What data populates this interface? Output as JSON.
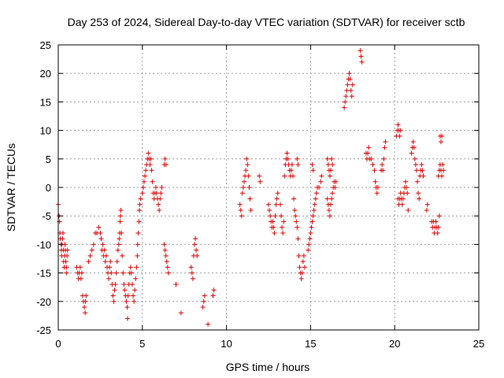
{
  "chart_data": {
    "type": "scatter",
    "title": "Day 253 of 2024, Sidereal Day-to-day VTEC variation (SDTVAR) for receiver sctb",
    "xlabel": "GPS time / hours",
    "ylabel": "SDTVAR / TECUs",
    "xlim": [
      0,
      25
    ],
    "ylim": [
      -25,
      25
    ],
    "xticks": [
      0,
      5,
      10,
      15,
      20,
      25
    ],
    "yticks": [
      -25,
      -20,
      -15,
      -10,
      -5,
      0,
      5,
      10,
      15,
      20,
      25
    ],
    "grid": true,
    "marker": "plus",
    "color": "#e00000",
    "series": [
      {
        "name": "sctb",
        "points": [
          [
            0.0,
            -3
          ],
          [
            0.05,
            -5
          ],
          [
            0.08,
            -6
          ],
          [
            0.1,
            -8
          ],
          [
            0.12,
            -9
          ],
          [
            0.15,
            -10
          ],
          [
            0.18,
            -11
          ],
          [
            0.2,
            -12
          ],
          [
            0.22,
            -10
          ],
          [
            0.25,
            -9
          ],
          [
            0.28,
            -8
          ],
          [
            0.3,
            -11
          ],
          [
            0.32,
            -13
          ],
          [
            0.35,
            -14
          ],
          [
            0.38,
            -12
          ],
          [
            0.4,
            -10
          ],
          [
            0.42,
            -11
          ],
          [
            0.45,
            -13
          ],
          [
            0.48,
            -15
          ],
          [
            0.5,
            -14
          ],
          [
            0.52,
            -12
          ],
          [
            0.55,
            -11
          ],
          [
            1.1,
            -14
          ],
          [
            1.15,
            -15
          ],
          [
            1.2,
            -16
          ],
          [
            1.25,
            -15
          ],
          [
            1.3,
            -14
          ],
          [
            1.35,
            -16
          ],
          [
            1.4,
            -15
          ],
          [
            1.45,
            -19
          ],
          [
            1.5,
            -20
          ],
          [
            1.55,
            -21
          ],
          [
            1.6,
            -22
          ],
          [
            1.62,
            -20
          ],
          [
            1.65,
            -19
          ],
          [
            1.8,
            -13
          ],
          [
            1.9,
            -12
          ],
          [
            2.0,
            -11
          ],
          [
            2.1,
            -10
          ],
          [
            2.2,
            -8
          ],
          [
            2.3,
            -8
          ],
          [
            2.4,
            -7
          ],
          [
            2.5,
            -8
          ],
          [
            2.55,
            -9
          ],
          [
            2.6,
            -11
          ],
          [
            2.65,
            -10
          ],
          [
            2.7,
            -12
          ],
          [
            2.75,
            -11
          ],
          [
            2.8,
            -13
          ],
          [
            2.85,
            -12
          ],
          [
            2.9,
            -14
          ],
          [
            2.95,
            -15
          ],
          [
            3.0,
            -16
          ],
          [
            3.05,
            -14
          ],
          [
            3.1,
            -13
          ],
          [
            3.15,
            -15
          ],
          [
            3.2,
            -17
          ],
          [
            3.25,
            -19
          ],
          [
            3.3,
            -20
          ],
          [
            3.35,
            -18
          ],
          [
            3.4,
            -17
          ],
          [
            3.45,
            -15
          ],
          [
            3.5,
            -13
          ],
          [
            3.55,
            -11
          ],
          [
            3.6,
            -10
          ],
          [
            3.62,
            -9
          ],
          [
            3.65,
            -8
          ],
          [
            3.68,
            -6
          ],
          [
            3.7,
            -5
          ],
          [
            3.72,
            -4
          ],
          [
            3.75,
            -8
          ],
          [
            3.8,
            -12
          ],
          [
            3.85,
            -15
          ],
          [
            3.9,
            -17
          ],
          [
            3.95,
            -18
          ],
          [
            4.0,
            -19
          ],
          [
            4.05,
            -20
          ],
          [
            4.1,
            -21
          ],
          [
            4.12,
            -23
          ],
          [
            4.15,
            -19
          ],
          [
            4.2,
            -17
          ],
          [
            4.25,
            -15
          ],
          [
            4.3,
            -14
          ],
          [
            4.35,
            -15
          ],
          [
            4.4,
            -17
          ],
          [
            4.45,
            -19
          ],
          [
            4.5,
            -20
          ],
          [
            4.55,
            -18
          ],
          [
            4.6,
            -16
          ],
          [
            4.65,
            -14
          ],
          [
            4.7,
            -12
          ],
          [
            4.72,
            -10
          ],
          [
            4.75,
            -8
          ],
          [
            4.8,
            -6
          ],
          [
            4.82,
            -4
          ],
          [
            4.85,
            -3
          ],
          [
            4.9,
            -2
          ],
          [
            5.0,
            -1
          ],
          [
            5.05,
            0
          ],
          [
            5.1,
            1
          ],
          [
            5.15,
            2
          ],
          [
            5.2,
            3
          ],
          [
            5.25,
            4
          ],
          [
            5.3,
            5
          ],
          [
            5.35,
            6
          ],
          [
            5.4,
            5
          ],
          [
            5.45,
            4
          ],
          [
            5.5,
            5
          ],
          [
            5.55,
            3
          ],
          [
            5.6,
            1
          ],
          [
            5.65,
            -1
          ],
          [
            5.7,
            -2
          ],
          [
            5.75,
            -1
          ],
          [
            5.8,
            0
          ],
          [
            5.85,
            -1
          ],
          [
            5.9,
            -2
          ],
          [
            5.95,
            -3
          ],
          [
            6.0,
            -4
          ],
          [
            6.05,
            -2
          ],
          [
            6.1,
            -1
          ],
          [
            6.15,
            0
          ],
          [
            6.3,
            4
          ],
          [
            6.35,
            5
          ],
          [
            6.4,
            4
          ],
          [
            6.3,
            -10
          ],
          [
            6.35,
            -11
          ],
          [
            6.4,
            -12
          ],
          [
            6.45,
            -13
          ],
          [
            6.5,
            -14
          ],
          [
            6.55,
            -15
          ],
          [
            7.0,
            -17
          ],
          [
            7.3,
            -22
          ],
          [
            7.9,
            -14
          ],
          [
            7.95,
            -15
          ],
          [
            8.0,
            -16
          ],
          [
            8.05,
            -12
          ],
          [
            8.1,
            -10
          ],
          [
            8.15,
            -9
          ],
          [
            8.2,
            -11
          ],
          [
            8.25,
            -12
          ],
          [
            8.6,
            -21
          ],
          [
            8.65,
            -20
          ],
          [
            8.7,
            -19
          ],
          [
            8.9,
            -24
          ],
          [
            9.2,
            -19
          ],
          [
            9.25,
            -18
          ],
          [
            10.8,
            -3
          ],
          [
            10.85,
            -4
          ],
          [
            10.9,
            -5
          ],
          [
            10.95,
            -1
          ],
          [
            11.0,
            0
          ],
          [
            11.05,
            1
          ],
          [
            11.1,
            2
          ],
          [
            11.15,
            3
          ],
          [
            11.2,
            5
          ],
          [
            11.25,
            4
          ],
          [
            11.3,
            2
          ],
          [
            11.35,
            0
          ],
          [
            11.4,
            -2
          ],
          [
            11.45,
            -4
          ],
          [
            11.95,
            2
          ],
          [
            12.0,
            1
          ],
          [
            12.5,
            -3
          ],
          [
            12.55,
            -4
          ],
          [
            12.6,
            -5
          ],
          [
            12.65,
            -6
          ],
          [
            12.7,
            -7
          ],
          [
            12.75,
            -6
          ],
          [
            12.8,
            -7
          ],
          [
            12.85,
            -8
          ],
          [
            12.9,
            -5
          ],
          [
            12.95,
            -3
          ],
          [
            13.0,
            -2
          ],
          [
            13.05,
            -1
          ],
          [
            13.2,
            -3
          ],
          [
            13.25,
            -5
          ],
          [
            13.3,
            -7
          ],
          [
            13.35,
            -8
          ],
          [
            13.4,
            -6
          ],
          [
            13.45,
            2
          ],
          [
            13.5,
            4
          ],
          [
            13.55,
            5
          ],
          [
            13.6,
            6
          ],
          [
            13.65,
            5
          ],
          [
            13.7,
            4
          ],
          [
            13.75,
            3
          ],
          [
            13.8,
            2
          ],
          [
            13.85,
            3
          ],
          [
            13.9,
            4
          ],
          [
            13.95,
            2
          ],
          [
            14.0,
            -2
          ],
          [
            14.05,
            -4
          ],
          [
            14.1,
            -5
          ],
          [
            14.15,
            -6
          ],
          [
            14.2,
            -7
          ],
          [
            14.25,
            -9
          ],
          [
            14.3,
            -12
          ],
          [
            14.35,
            -14
          ],
          [
            14.4,
            -15
          ],
          [
            14.45,
            -16
          ],
          [
            14.5,
            -15
          ],
          [
            14.55,
            -13
          ],
          [
            14.6,
            -12
          ],
          [
            14.65,
            -14
          ],
          [
            14.2,
            5
          ],
          [
            14.25,
            4
          ],
          [
            14.85,
            -11
          ],
          [
            14.9,
            -10
          ],
          [
            14.95,
            -9
          ],
          [
            15.0,
            -8
          ],
          [
            15.05,
            -7
          ],
          [
            15.1,
            -6
          ],
          [
            15.15,
            -5
          ],
          [
            15.2,
            -4
          ],
          [
            15.25,
            -3
          ],
          [
            15.3,
            -2
          ],
          [
            15.35,
            -1
          ],
          [
            15.4,
            0
          ],
          [
            15.5,
            0
          ],
          [
            15.6,
            1
          ],
          [
            15.65,
            2
          ],
          [
            15.1,
            4
          ],
          [
            15.15,
            3
          ],
          [
            16.0,
            -2
          ],
          [
            16.05,
            -3
          ],
          [
            16.1,
            -4
          ],
          [
            16.15,
            -5
          ],
          [
            16.2,
            -3
          ],
          [
            16.25,
            -2
          ],
          [
            16.3,
            -1
          ],
          [
            16.35,
            0
          ],
          [
            16.4,
            1
          ],
          [
            16.45,
            0
          ],
          [
            16.5,
            1
          ],
          [
            16.0,
            5
          ],
          [
            16.05,
            4
          ],
          [
            16.1,
            3
          ],
          [
            16.15,
            2
          ],
          [
            16.2,
            3
          ],
          [
            16.25,
            5
          ],
          [
            16.3,
            4
          ],
          [
            17.0,
            14
          ],
          [
            17.05,
            15
          ],
          [
            17.1,
            16
          ],
          [
            17.15,
            17
          ],
          [
            17.2,
            18
          ],
          [
            17.25,
            19
          ],
          [
            17.3,
            20
          ],
          [
            17.35,
            19
          ],
          [
            17.4,
            17
          ],
          [
            17.45,
            16
          ],
          [
            17.5,
            18
          ],
          [
            17.95,
            24
          ],
          [
            18.0,
            23
          ],
          [
            18.05,
            22
          ],
          [
            18.3,
            6
          ],
          [
            18.35,
            5
          ],
          [
            18.4,
            6
          ],
          [
            18.45,
            7
          ],
          [
            18.5,
            5
          ],
          [
            18.6,
            5
          ],
          [
            18.7,
            4
          ],
          [
            18.8,
            3
          ],
          [
            18.85,
            1
          ],
          [
            18.9,
            0
          ],
          [
            18.95,
            -1
          ],
          [
            19.0,
            0
          ],
          [
            19.2,
            3
          ],
          [
            19.25,
            4
          ],
          [
            19.3,
            3
          ],
          [
            19.35,
            5
          ],
          [
            19.4,
            7
          ],
          [
            19.45,
            8
          ],
          [
            20.2,
            -2
          ],
          [
            20.25,
            -3
          ],
          [
            20.3,
            -2
          ],
          [
            20.35,
            -1
          ],
          [
            20.4,
            -2
          ],
          [
            20.45,
            -3
          ],
          [
            20.5,
            -2
          ],
          [
            20.55,
            -1
          ],
          [
            20.6,
            0
          ],
          [
            20.65,
            1
          ],
          [
            20.7,
            0
          ],
          [
            20.75,
            -1
          ],
          [
            20.8,
            -4
          ],
          [
            20.1,
            9
          ],
          [
            20.15,
            10
          ],
          [
            20.2,
            11
          ],
          [
            20.25,
            10
          ],
          [
            20.3,
            9
          ],
          [
            20.35,
            10
          ],
          [
            21.0,
            6
          ],
          [
            21.05,
            7
          ],
          [
            21.1,
            8
          ],
          [
            21.15,
            7
          ],
          [
            21.2,
            5
          ],
          [
            21.25,
            4
          ],
          [
            21.3,
            3
          ],
          [
            21.35,
            1
          ],
          [
            21.4,
            -1
          ],
          [
            21.45,
            -2
          ],
          [
            21.5,
            2
          ],
          [
            21.55,
            3
          ],
          [
            21.6,
            4
          ],
          [
            21.65,
            3
          ],
          [
            21.7,
            2
          ],
          [
            21.9,
            -4
          ],
          [
            21.95,
            -3
          ],
          [
            22.2,
            -6
          ],
          [
            22.25,
            -7
          ],
          [
            22.3,
            -6
          ],
          [
            22.35,
            -8
          ],
          [
            22.4,
            -7
          ],
          [
            22.45,
            -6
          ],
          [
            22.5,
            -7
          ],
          [
            22.55,
            -8
          ],
          [
            22.6,
            -7
          ],
          [
            22.65,
            -5
          ],
          [
            22.6,
            2
          ],
          [
            22.65,
            3
          ],
          [
            22.7,
            4
          ],
          [
            22.75,
            3
          ],
          [
            22.8,
            2
          ],
          [
            22.85,
            4
          ],
          [
            22.9,
            3
          ],
          [
            22.7,
            9
          ],
          [
            22.75,
            8
          ],
          [
            22.8,
            9
          ]
        ]
      }
    ]
  }
}
